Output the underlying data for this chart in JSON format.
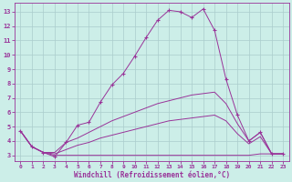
{
  "xlabel": "Windchill (Refroidissement éolien,°C)",
  "bg_color": "#cceee8",
  "grid_color": "#aacccc",
  "line_color": "#993399",
  "xlim": [
    -0.5,
    23.5
  ],
  "ylim": [
    2.6,
    13.6
  ],
  "xticks": [
    0,
    1,
    2,
    3,
    4,
    5,
    6,
    7,
    8,
    9,
    10,
    11,
    12,
    13,
    14,
    15,
    16,
    17,
    18,
    19,
    20,
    21,
    22,
    23
  ],
  "yticks": [
    3,
    4,
    5,
    6,
    7,
    8,
    9,
    10,
    11,
    12,
    13
  ],
  "line_main_x": [
    0,
    1,
    2,
    3,
    4,
    5,
    6,
    7,
    8,
    9,
    10,
    11,
    12,
    13,
    14,
    15,
    16,
    17,
    18,
    19,
    20,
    21,
    22,
    23
  ],
  "line_main_y": [
    4.7,
    3.6,
    3.2,
    2.9,
    3.9,
    5.1,
    5.3,
    6.7,
    7.9,
    8.7,
    9.9,
    11.2,
    12.4,
    13.1,
    13.0,
    12.6,
    13.2,
    11.7,
    8.3,
    5.8,
    4.0,
    4.6,
    3.1,
    3.1
  ],
  "line2_x": [
    0,
    1,
    2,
    3,
    4,
    5,
    6,
    7,
    8,
    9,
    10,
    11,
    12,
    13,
    14,
    15,
    16,
    17,
    18,
    19,
    20,
    21,
    22,
    23
  ],
  "line2_y": [
    4.7,
    3.6,
    3.2,
    3.2,
    3.9,
    4.2,
    4.6,
    5.0,
    5.4,
    5.7,
    6.0,
    6.3,
    6.6,
    6.8,
    7.0,
    7.2,
    7.3,
    7.4,
    6.6,
    5.2,
    4.0,
    4.6,
    3.1,
    3.1
  ],
  "line3_x": [
    0,
    1,
    2,
    3,
    4,
    5,
    6,
    7,
    8,
    9,
    10,
    11,
    12,
    13,
    14,
    15,
    16,
    17,
    18,
    19,
    20,
    21,
    22,
    23
  ],
  "line3_y": [
    4.7,
    3.6,
    3.2,
    3.1,
    3.4,
    3.7,
    3.9,
    4.2,
    4.4,
    4.6,
    4.8,
    5.0,
    5.2,
    5.4,
    5.5,
    5.6,
    5.7,
    5.8,
    5.4,
    4.5,
    3.8,
    4.3,
    3.1,
    3.1
  ],
  "line4_x": [
    0,
    1,
    2,
    3,
    4,
    5,
    6,
    7,
    8,
    9,
    10,
    11,
    12,
    13,
    14,
    15,
    16,
    17,
    18,
    19,
    20,
    21,
    22,
    23
  ],
  "line4_y": [
    4.7,
    3.6,
    3.2,
    3.0,
    3.0,
    3.0,
    3.0,
    3.0,
    3.0,
    3.0,
    3.0,
    3.0,
    3.0,
    3.0,
    3.0,
    3.0,
    3.0,
    3.0,
    3.0,
    3.0,
    3.0,
    3.1,
    3.1,
    3.1
  ]
}
